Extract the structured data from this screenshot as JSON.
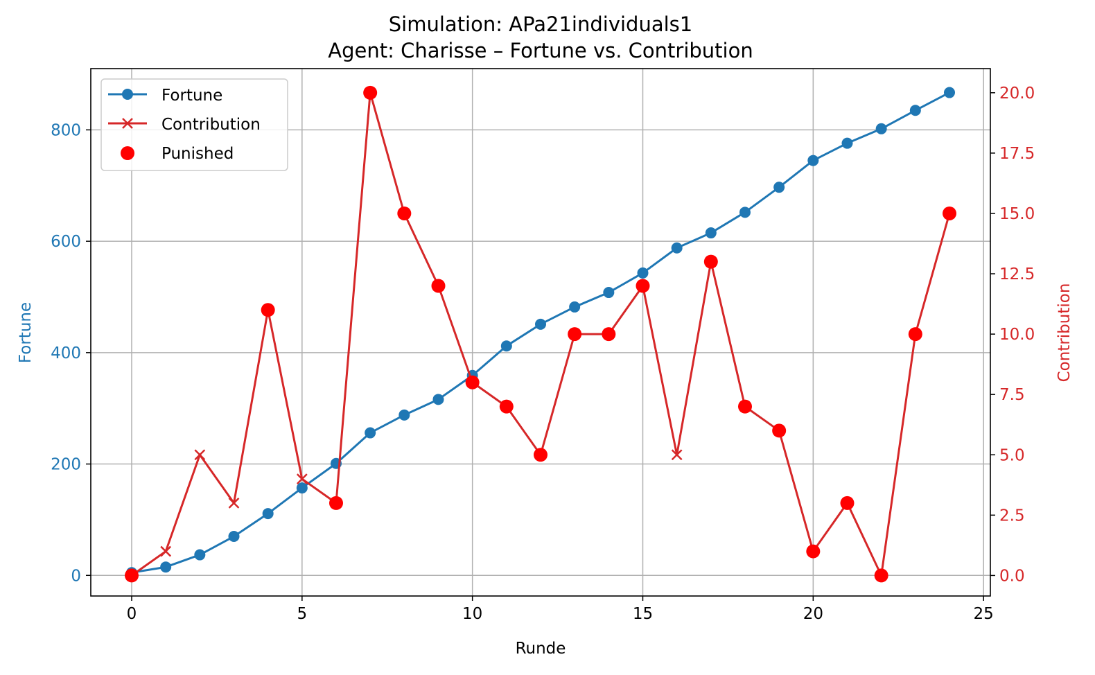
{
  "chart_data": {
    "type": "line",
    "title": "Simulation: APa21individuals1",
    "subtitle": "Agent: Charisse – Fortune vs. Contribution",
    "xlabel": "Runde",
    "ylabel_left": "Fortune",
    "ylabel_right": "Contribution",
    "xlim": [
      -1.2,
      25.2
    ],
    "ylim_left": [
      -37,
      910
    ],
    "ylim_right": [
      -0.85,
      21.0
    ],
    "x_ticks": [
      "0",
      "5",
      "10",
      "15",
      "20",
      "25"
    ],
    "y_left_ticks": [
      "0",
      "200",
      "400",
      "600",
      "800"
    ],
    "y_right_ticks": [
      "0.0",
      "2.5",
      "5.0",
      "7.5",
      "10.0",
      "12.5",
      "15.0",
      "17.5",
      "20.0"
    ],
    "grid": true,
    "legend_position": "upper-left",
    "colors": {
      "fortune": "#1f77b4",
      "contribution": "#d62728",
      "punished": "#ff0000"
    },
    "series": [
      {
        "name": "Fortune",
        "axis": "left",
        "marker": "circle",
        "x": [
          0,
          1,
          2,
          3,
          4,
          5,
          6,
          7,
          8,
          9,
          10,
          11,
          12,
          13,
          14,
          15,
          16,
          17,
          18,
          19,
          20,
          21,
          22,
          23,
          24
        ],
        "values": [
          5,
          15,
          37,
          70,
          111,
          157,
          201,
          256,
          288,
          316,
          359,
          412,
          451,
          482,
          508,
          543,
          588,
          615,
          652,
          697,
          745,
          776,
          802,
          835,
          867
        ]
      },
      {
        "name": "Contribution",
        "axis": "right",
        "marker": "x",
        "x": [
          0,
          1,
          2,
          3,
          4,
          5,
          6,
          7,
          8,
          9,
          10,
          11,
          12,
          13,
          14,
          15,
          16,
          17,
          18,
          19,
          20,
          21,
          22,
          23,
          24
        ],
        "values": [
          0,
          1,
          5,
          3,
          11,
          4,
          3,
          20,
          15,
          12,
          8,
          7,
          5,
          10,
          10,
          12,
          5,
          13,
          7,
          6,
          1,
          3,
          0,
          10,
          15
        ]
      },
      {
        "name": "Punished",
        "axis": "right",
        "marker": "dot",
        "x": [
          0,
          4,
          6,
          7,
          8,
          9,
          10,
          11,
          12,
          13,
          14,
          15,
          17,
          18,
          19,
          20,
          21,
          22,
          23,
          24
        ],
        "values": [
          0,
          11,
          3,
          20,
          15,
          12,
          8,
          7,
          5,
          10,
          10,
          12,
          13,
          7,
          6,
          1,
          3,
          0,
          10,
          15
        ]
      }
    ]
  }
}
